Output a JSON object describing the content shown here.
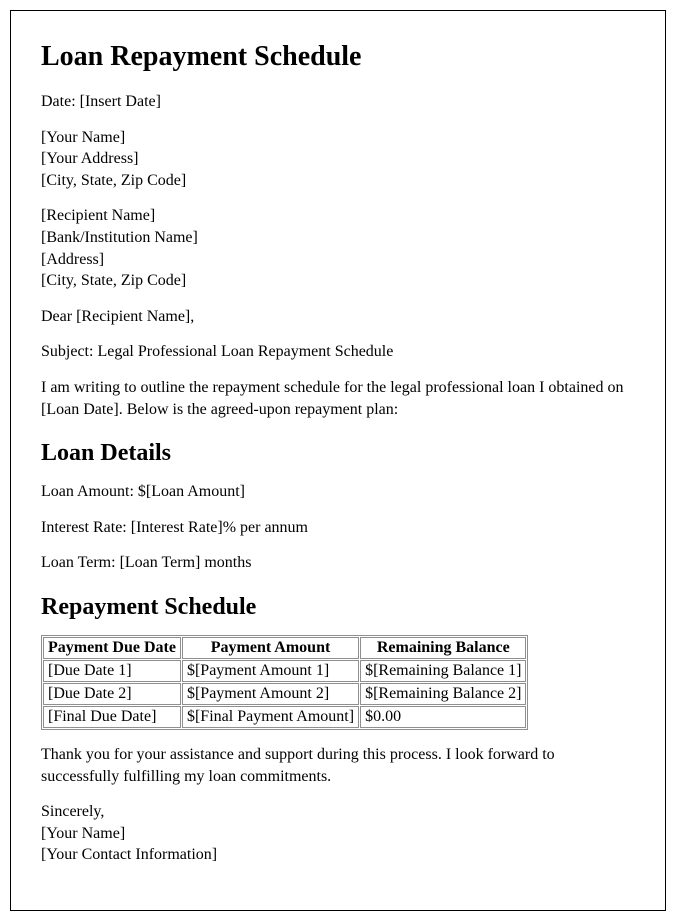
{
  "title": "Loan Repayment Schedule",
  "date_line": "Date: [Insert Date]",
  "sender": {
    "name": "[Your Name]",
    "address": "[Your Address]",
    "city_state_zip": "[City, State, Zip Code]"
  },
  "recipient": {
    "name": "[Recipient Name]",
    "institution": "[Bank/Institution Name]",
    "address": "[Address]",
    "city_state_zip": "[City, State, Zip Code]"
  },
  "salutation": "Dear [Recipient Name],",
  "subject_line": "Subject: Legal Professional Loan Repayment Schedule",
  "intro_paragraph": "I am writing to outline the repayment schedule for the legal professional loan I obtained on [Loan Date]. Below is the agreed-upon repayment plan:",
  "loan_details_heading": "Loan Details",
  "loan_amount_line": "Loan Amount: $[Loan Amount]",
  "interest_rate_line": "Interest Rate: [Interest Rate]% per annum",
  "loan_term_line": "Loan Term: [Loan Term] months",
  "schedule_heading": "Repayment Schedule",
  "table": {
    "columns": [
      "Payment Due Date",
      "Payment Amount",
      "Remaining Balance"
    ],
    "rows": [
      [
        "[Due Date 1]",
        "$[Payment Amount 1]",
        "$[Remaining Balance 1]"
      ],
      [
        "[Due Date 2]",
        "$[Payment Amount 2]",
        "$[Remaining Balance 2]"
      ],
      [
        "[Final Due Date]",
        "$[Final Payment Amount]",
        "$0.00"
      ]
    ]
  },
  "closing_paragraph": "Thank you for your assistance and support during this process. I look forward to successfully fulfilling my loan commitments.",
  "signoff": "Sincerely,",
  "signer_name": "[Your Name]",
  "signer_contact": "[Your Contact Information]"
}
